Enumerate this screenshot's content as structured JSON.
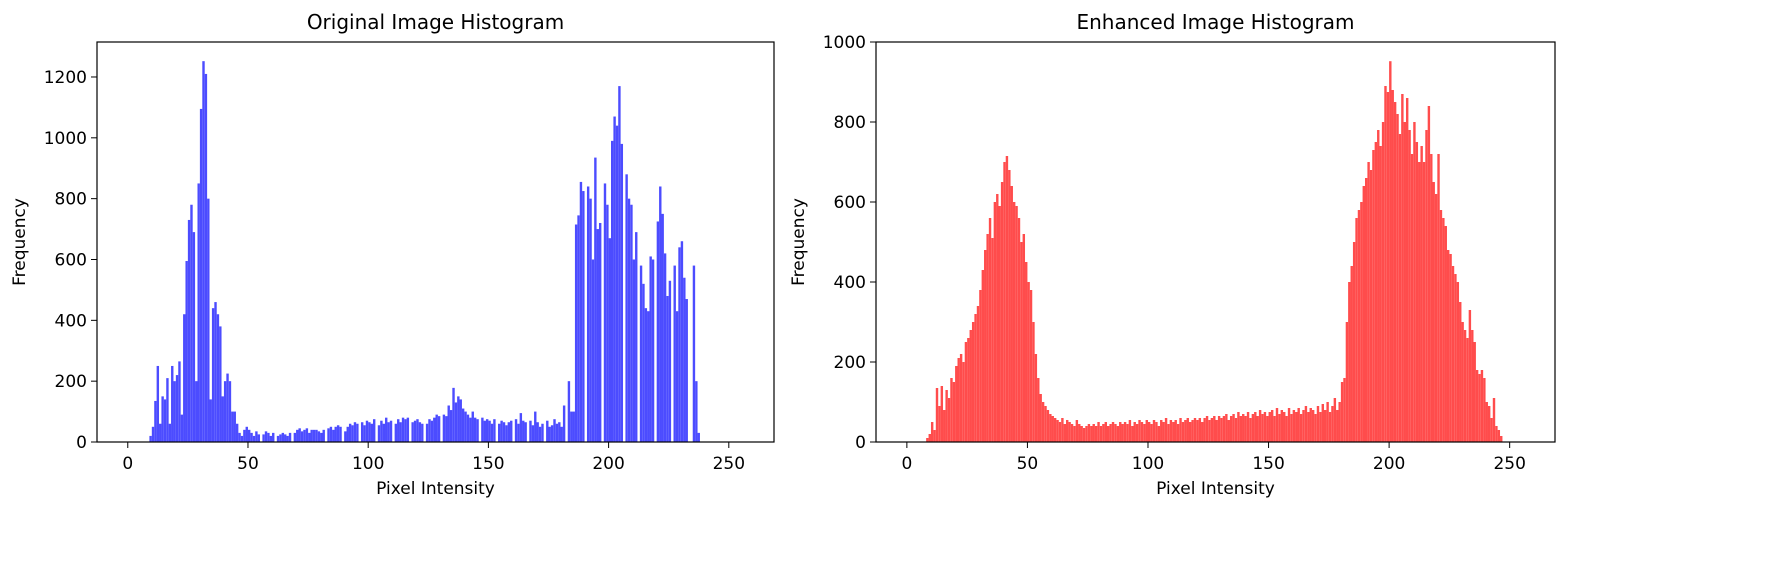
{
  "chart_data": [
    {
      "type": "histogram",
      "title": "Original Image Histogram",
      "xlabel": "Pixel Intensity",
      "ylabel": "Frequency",
      "color": "#4c4cff",
      "bins": [
        0,
        1,
        2,
        3,
        4,
        5,
        6,
        7,
        8,
        9,
        10,
        11,
        12,
        13,
        14,
        15,
        16,
        17,
        18,
        19,
        20,
        21,
        22,
        23,
        24,
        25,
        26,
        27,
        28,
        29,
        30,
        31,
        32,
        33,
        34,
        35,
        36,
        37,
        38,
        39,
        40,
        41,
        42,
        43,
        44,
        45,
        46,
        47,
        48,
        49,
        50,
        51,
        52,
        53,
        54,
        55,
        56,
        57,
        58,
        59,
        60,
        61,
        62,
        63,
        64,
        65,
        66,
        67,
        68,
        69,
        70,
        71,
        72,
        73,
        74,
        75,
        76,
        77,
        78,
        79,
        80,
        81,
        82,
        83,
        84,
        85,
        86,
        87,
        88,
        89,
        90,
        91,
        92,
        93,
        94,
        95,
        96,
        97,
        98,
        99,
        100,
        101,
        102,
        103,
        104,
        105,
        106,
        107,
        108,
        109,
        110,
        111,
        112,
        113,
        114,
        115,
        116,
        117,
        118,
        119,
        120,
        121,
        122,
        123,
        124,
        125,
        126,
        127,
        128,
        129,
        130,
        131,
        132,
        133,
        134,
        135,
        136,
        137,
        138,
        139,
        140,
        141,
        142,
        143,
        144,
        145,
        146,
        147,
        148,
        149,
        150,
        151,
        152,
        153,
        154,
        155,
        156,
        157,
        158,
        159,
        160,
        161,
        162,
        163,
        164,
        165,
        166,
        167,
        168,
        169,
        170,
        171,
        172,
        173,
        174,
        175,
        176,
        177,
        178,
        179,
        180,
        181,
        182,
        183,
        184,
        185,
        186,
        187,
        188,
        189,
        190,
        191,
        192,
        193,
        194,
        195,
        196,
        197,
        198,
        199,
        200,
        201,
        202,
        203,
        204,
        205,
        206,
        207,
        208,
        209,
        210,
        211,
        212,
        213,
        214,
        215,
        216,
        217,
        218,
        219,
        220,
        221,
        222,
        223,
        224,
        225,
        226,
        227,
        228,
        229,
        230,
        231,
        232,
        233,
        234,
        235,
        236,
        237,
        238,
        239,
        240,
        241,
        242,
        243,
        244,
        245,
        246,
        247,
        248,
        249,
        250,
        251,
        252,
        253,
        254,
        255,
        256
      ],
      "counts": [
        0,
        0,
        0,
        0,
        0,
        0,
        0,
        0,
        0,
        20,
        50,
        135,
        250,
        60,
        150,
        140,
        210,
        60,
        250,
        200,
        220,
        265,
        90,
        420,
        595,
        730,
        780,
        690,
        200,
        850,
        1095,
        1252,
        1210,
        800,
        140,
        440,
        460,
        420,
        380,
        150,
        200,
        225,
        200,
        100,
        100,
        60,
        30,
        20,
        40,
        50,
        40,
        30,
        20,
        35,
        25,
        0,
        25,
        35,
        30,
        20,
        30,
        0,
        20,
        25,
        30,
        25,
        20,
        30,
        0,
        30,
        40,
        45,
        35,
        40,
        45,
        30,
        40,
        40,
        40,
        35,
        30,
        40,
        0,
        45,
        50,
        40,
        50,
        55,
        50,
        0,
        35,
        50,
        60,
        55,
        65,
        60,
        0,
        65,
        55,
        70,
        65,
        60,
        75,
        0,
        55,
        70,
        60,
        80,
        65,
        70,
        0,
        60,
        75,
        65,
        80,
        75,
        80,
        0,
        65,
        70,
        75,
        65,
        60,
        0,
        60,
        75,
        70,
        80,
        90,
        85,
        0,
        90,
        85,
        120,
        105,
        178,
        130,
        150,
        140,
        110,
        100,
        90,
        80,
        100,
        80,
        75,
        0,
        80,
        70,
        75,
        70,
        60,
        75,
        0,
        60,
        70,
        65,
        55,
        65,
        70,
        0,
        75,
        60,
        95,
        70,
        65,
        0,
        70,
        55,
        100,
        65,
        50,
        60,
        0,
        70,
        50,
        55,
        75,
        60,
        65,
        50,
        120,
        0,
        200,
        100,
        100,
        715,
        745,
        855,
        825,
        0,
        840,
        800,
        600,
        935,
        700,
        720,
        0,
        850,
        780,
        670,
        990,
        1070,
        1040,
        1170,
        980,
        0,
        880,
        800,
        780,
        600,
        690,
        0,
        580,
        520,
        440,
        430,
        610,
        600,
        0,
        725,
        840,
        750,
        620,
        480,
        530,
        0,
        580,
        430,
        640,
        660,
        540,
        470,
        0,
        0,
        580,
        200,
        30,
        0,
        0,
        0,
        0,
        0,
        0,
        0,
        0,
        0,
        0,
        0,
        0,
        0,
        0,
        0,
        0,
        0,
        0
      ],
      "xlim": [
        -12.8,
        268.8
      ],
      "ylim": [
        0,
        1315
      ],
      "xticks": [
        0,
        50,
        100,
        150,
        200,
        250
      ],
      "yticks": [
        0,
        200,
        400,
        600,
        800,
        1000,
        1200
      ]
    },
    {
      "type": "histogram",
      "title": "Enhanced Image Histogram",
      "xlabel": "Pixel Intensity",
      "ylabel": "Frequency",
      "color": "#ff4c4c",
      "bins": [
        0,
        1,
        2,
        3,
        4,
        5,
        6,
        7,
        8,
        9,
        10,
        11,
        12,
        13,
        14,
        15,
        16,
        17,
        18,
        19,
        20,
        21,
        22,
        23,
        24,
        25,
        26,
        27,
        28,
        29,
        30,
        31,
        32,
        33,
        34,
        35,
        36,
        37,
        38,
        39,
        40,
        41,
        42,
        43,
        44,
        45,
        46,
        47,
        48,
        49,
        50,
        51,
        52,
        53,
        54,
        55,
        56,
        57,
        58,
        59,
        60,
        61,
        62,
        63,
        64,
        65,
        66,
        67,
        68,
        69,
        70,
        71,
        72,
        73,
        74,
        75,
        76,
        77,
        78,
        79,
        80,
        81,
        82,
        83,
        84,
        85,
        86,
        87,
        88,
        89,
        90,
        91,
        92,
        93,
        94,
        95,
        96,
        97,
        98,
        99,
        100,
        101,
        102,
        103,
        104,
        105,
        106,
        107,
        108,
        109,
        110,
        111,
        112,
        113,
        114,
        115,
        116,
        117,
        118,
        119,
        120,
        121,
        122,
        123,
        124,
        125,
        126,
        127,
        128,
        129,
        130,
        131,
        132,
        133,
        134,
        135,
        136,
        137,
        138,
        139,
        140,
        141,
        142,
        143,
        144,
        145,
        146,
        147,
        148,
        149,
        150,
        151,
        152,
        153,
        154,
        155,
        156,
        157,
        158,
        159,
        160,
        161,
        162,
        163,
        164,
        165,
        166,
        167,
        168,
        169,
        170,
        171,
        172,
        173,
        174,
        175,
        176,
        177,
        178,
        179,
        180,
        181,
        182,
        183,
        184,
        185,
        186,
        187,
        188,
        189,
        190,
        191,
        192,
        193,
        194,
        195,
        196,
        197,
        198,
        199,
        200,
        201,
        202,
        203,
        204,
        205,
        206,
        207,
        208,
        209,
        210,
        211,
        212,
        213,
        214,
        215,
        216,
        217,
        218,
        219,
        220,
        221,
        222,
        223,
        224,
        225,
        226,
        227,
        228,
        229,
        230,
        231,
        232,
        233,
        234,
        235,
        236,
        237,
        238,
        239,
        240,
        241,
        242,
        243,
        244,
        245,
        246,
        247,
        248,
        249,
        250,
        251,
        252,
        253,
        254,
        255,
        256
      ],
      "counts": [
        0,
        0,
        0,
        0,
        0,
        0,
        0,
        0,
        10,
        20,
        50,
        30,
        135,
        90,
        140,
        80,
        130,
        110,
        160,
        150,
        190,
        210,
        220,
        200,
        250,
        260,
        280,
        300,
        320,
        340,
        380,
        430,
        480,
        520,
        560,
        510,
        600,
        620,
        590,
        650,
        700,
        715,
        680,
        640,
        600,
        590,
        560,
        500,
        520,
        450,
        400,
        380,
        300,
        220,
        160,
        120,
        100,
        90,
        80,
        70,
        65,
        60,
        55,
        50,
        60,
        45,
        55,
        50,
        45,
        40,
        55,
        45,
        40,
        35,
        40,
        45,
        40,
        45,
        40,
        50,
        40,
        45,
        50,
        40,
        45,
        50,
        45,
        40,
        50,
        45,
        50,
        45,
        55,
        40,
        50,
        45,
        55,
        50,
        45,
        55,
        50,
        45,
        55,
        50,
        40,
        55,
        50,
        60,
        45,
        55,
        50,
        55,
        45,
        60,
        50,
        55,
        60,
        50,
        55,
        60,
        55,
        60,
        50,
        60,
        65,
        55,
        60,
        65,
        55,
        65,
        60,
        65,
        70,
        55,
        65,
        70,
        60,
        75,
        65,
        70,
        65,
        75,
        60,
        70,
        75,
        65,
        80,
        70,
        75,
        65,
        75,
        80,
        65,
        85,
        70,
        80,
        75,
        65,
        85,
        70,
        80,
        75,
        85,
        70,
        80,
        90,
        75,
        85,
        80,
        70,
        90,
        75,
        95,
        80,
        100,
        75,
        90,
        110,
        80,
        100,
        150,
        160,
        300,
        400,
        440,
        500,
        560,
        580,
        600,
        640,
        660,
        700,
        680,
        730,
        750,
        780,
        740,
        800,
        890,
        875,
        952,
        880,
        850,
        820,
        770,
        870,
        800,
        860,
        780,
        720,
        800,
        750,
        700,
        740,
        700,
        780,
        840,
        720,
        650,
        620,
        720,
        580,
        560,
        540,
        480,
        470,
        440,
        420,
        400,
        350,
        300,
        280,
        260,
        330,
        280,
        250,
        180,
        170,
        180,
        160,
        100,
        90,
        60,
        110,
        40,
        30,
        15,
        0,
        0,
        0,
        0,
        0,
        0,
        0,
        0,
        0
      ],
      "xlim": [
        -12.8,
        268.8
      ],
      "ylim": [
        0,
        1000
      ],
      "xticks": [
        0,
        50,
        100,
        150,
        200,
        250
      ],
      "yticks": [
        0,
        200,
        400,
        600,
        800,
        1000
      ]
    }
  ]
}
